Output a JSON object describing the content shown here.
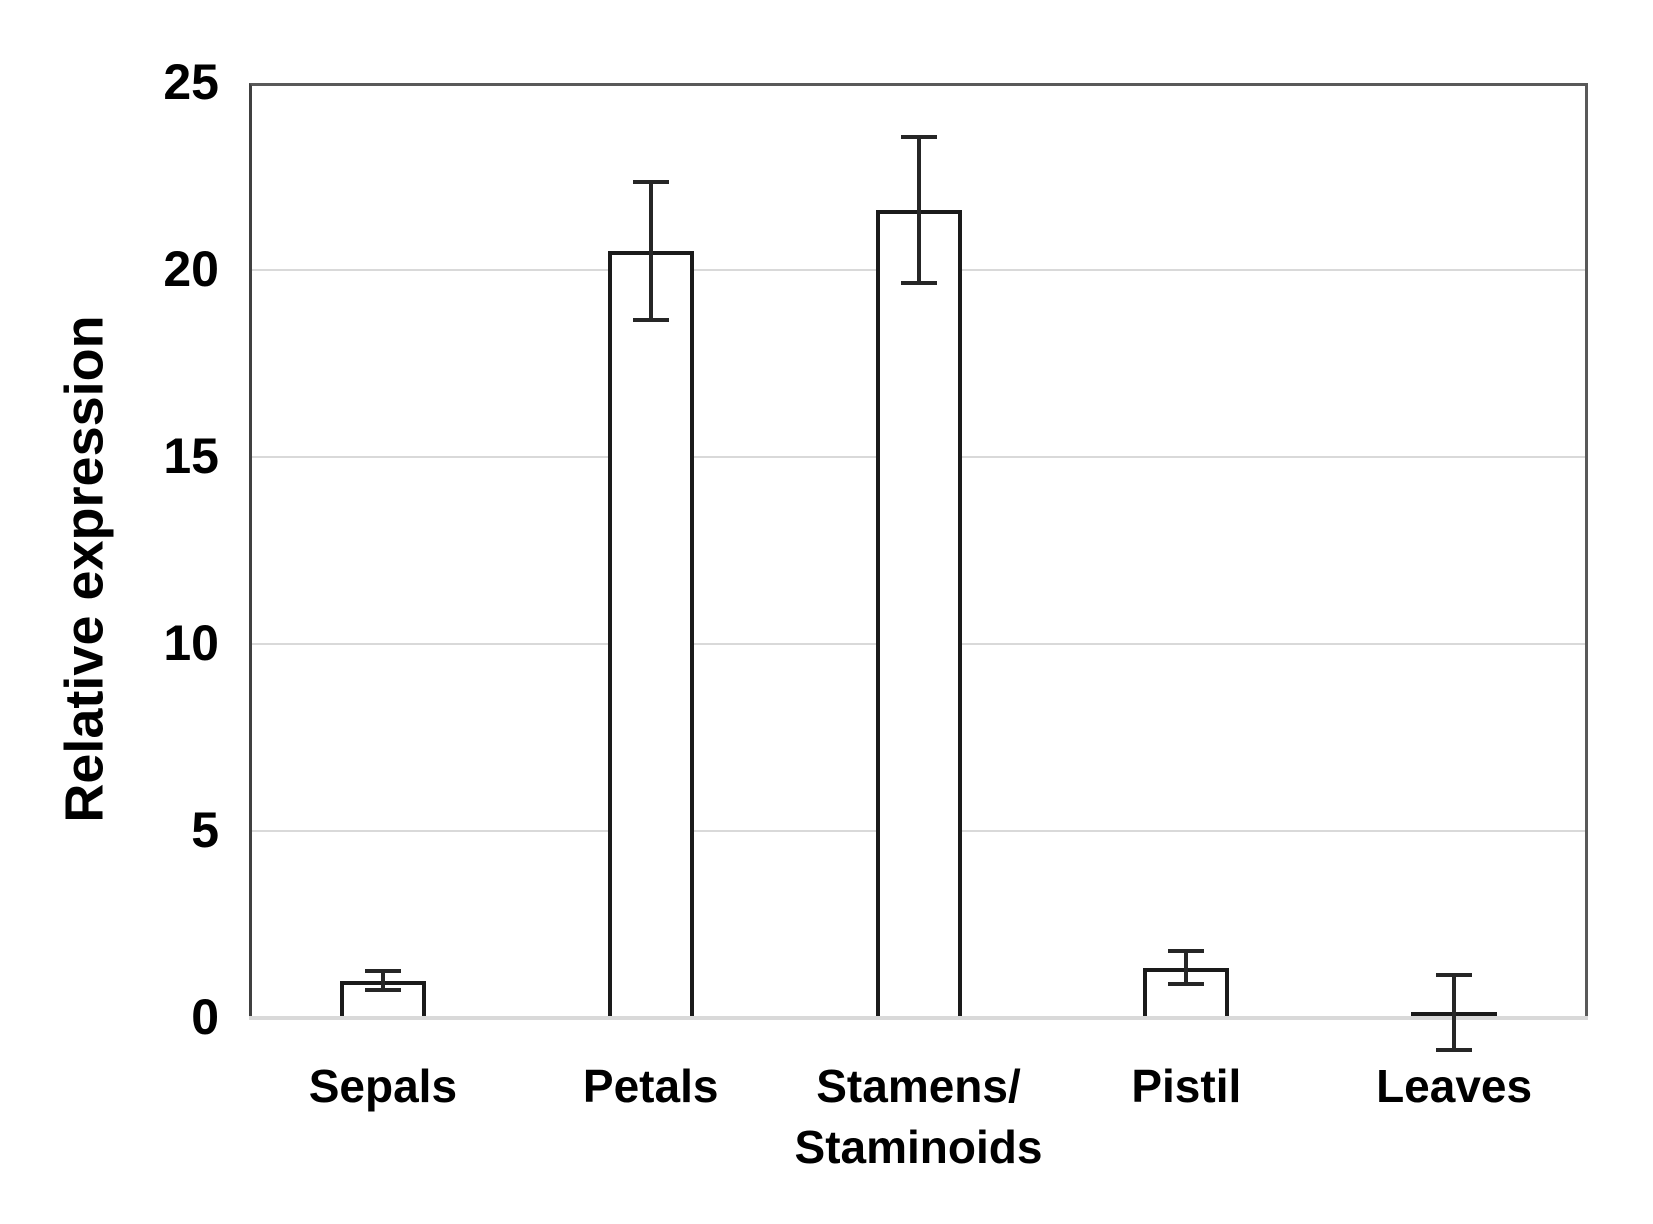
{
  "chart_data": {
    "type": "bar",
    "title": "",
    "ylabel": "Relative expression",
    "xlabel": "",
    "categories": [
      "Sepals",
      "Petals",
      "Stamens/\nStaminoids",
      "Pistil",
      "Leaves"
    ],
    "values": [
      1.0,
      20.5,
      21.6,
      1.35,
      0.15
    ],
    "error_bars": [
      0.25,
      1.85,
      1.95,
      0.45,
      1.0
    ],
    "ylim": [
      0,
      25
    ],
    "yticks": [
      0,
      5,
      10,
      15,
      20,
      25
    ],
    "grid": true,
    "legend": false,
    "colors": {
      "bar_fill": "#ffffff",
      "bar_stroke": "#1a1a1a",
      "error_bar": "#262626",
      "gridline": "#d9d9d9",
      "baseline": "#d9d9d9",
      "plot_border": "#595959",
      "y_axis_line": "#404040",
      "text": "#000000",
      "background": "#ffffff"
    }
  }
}
